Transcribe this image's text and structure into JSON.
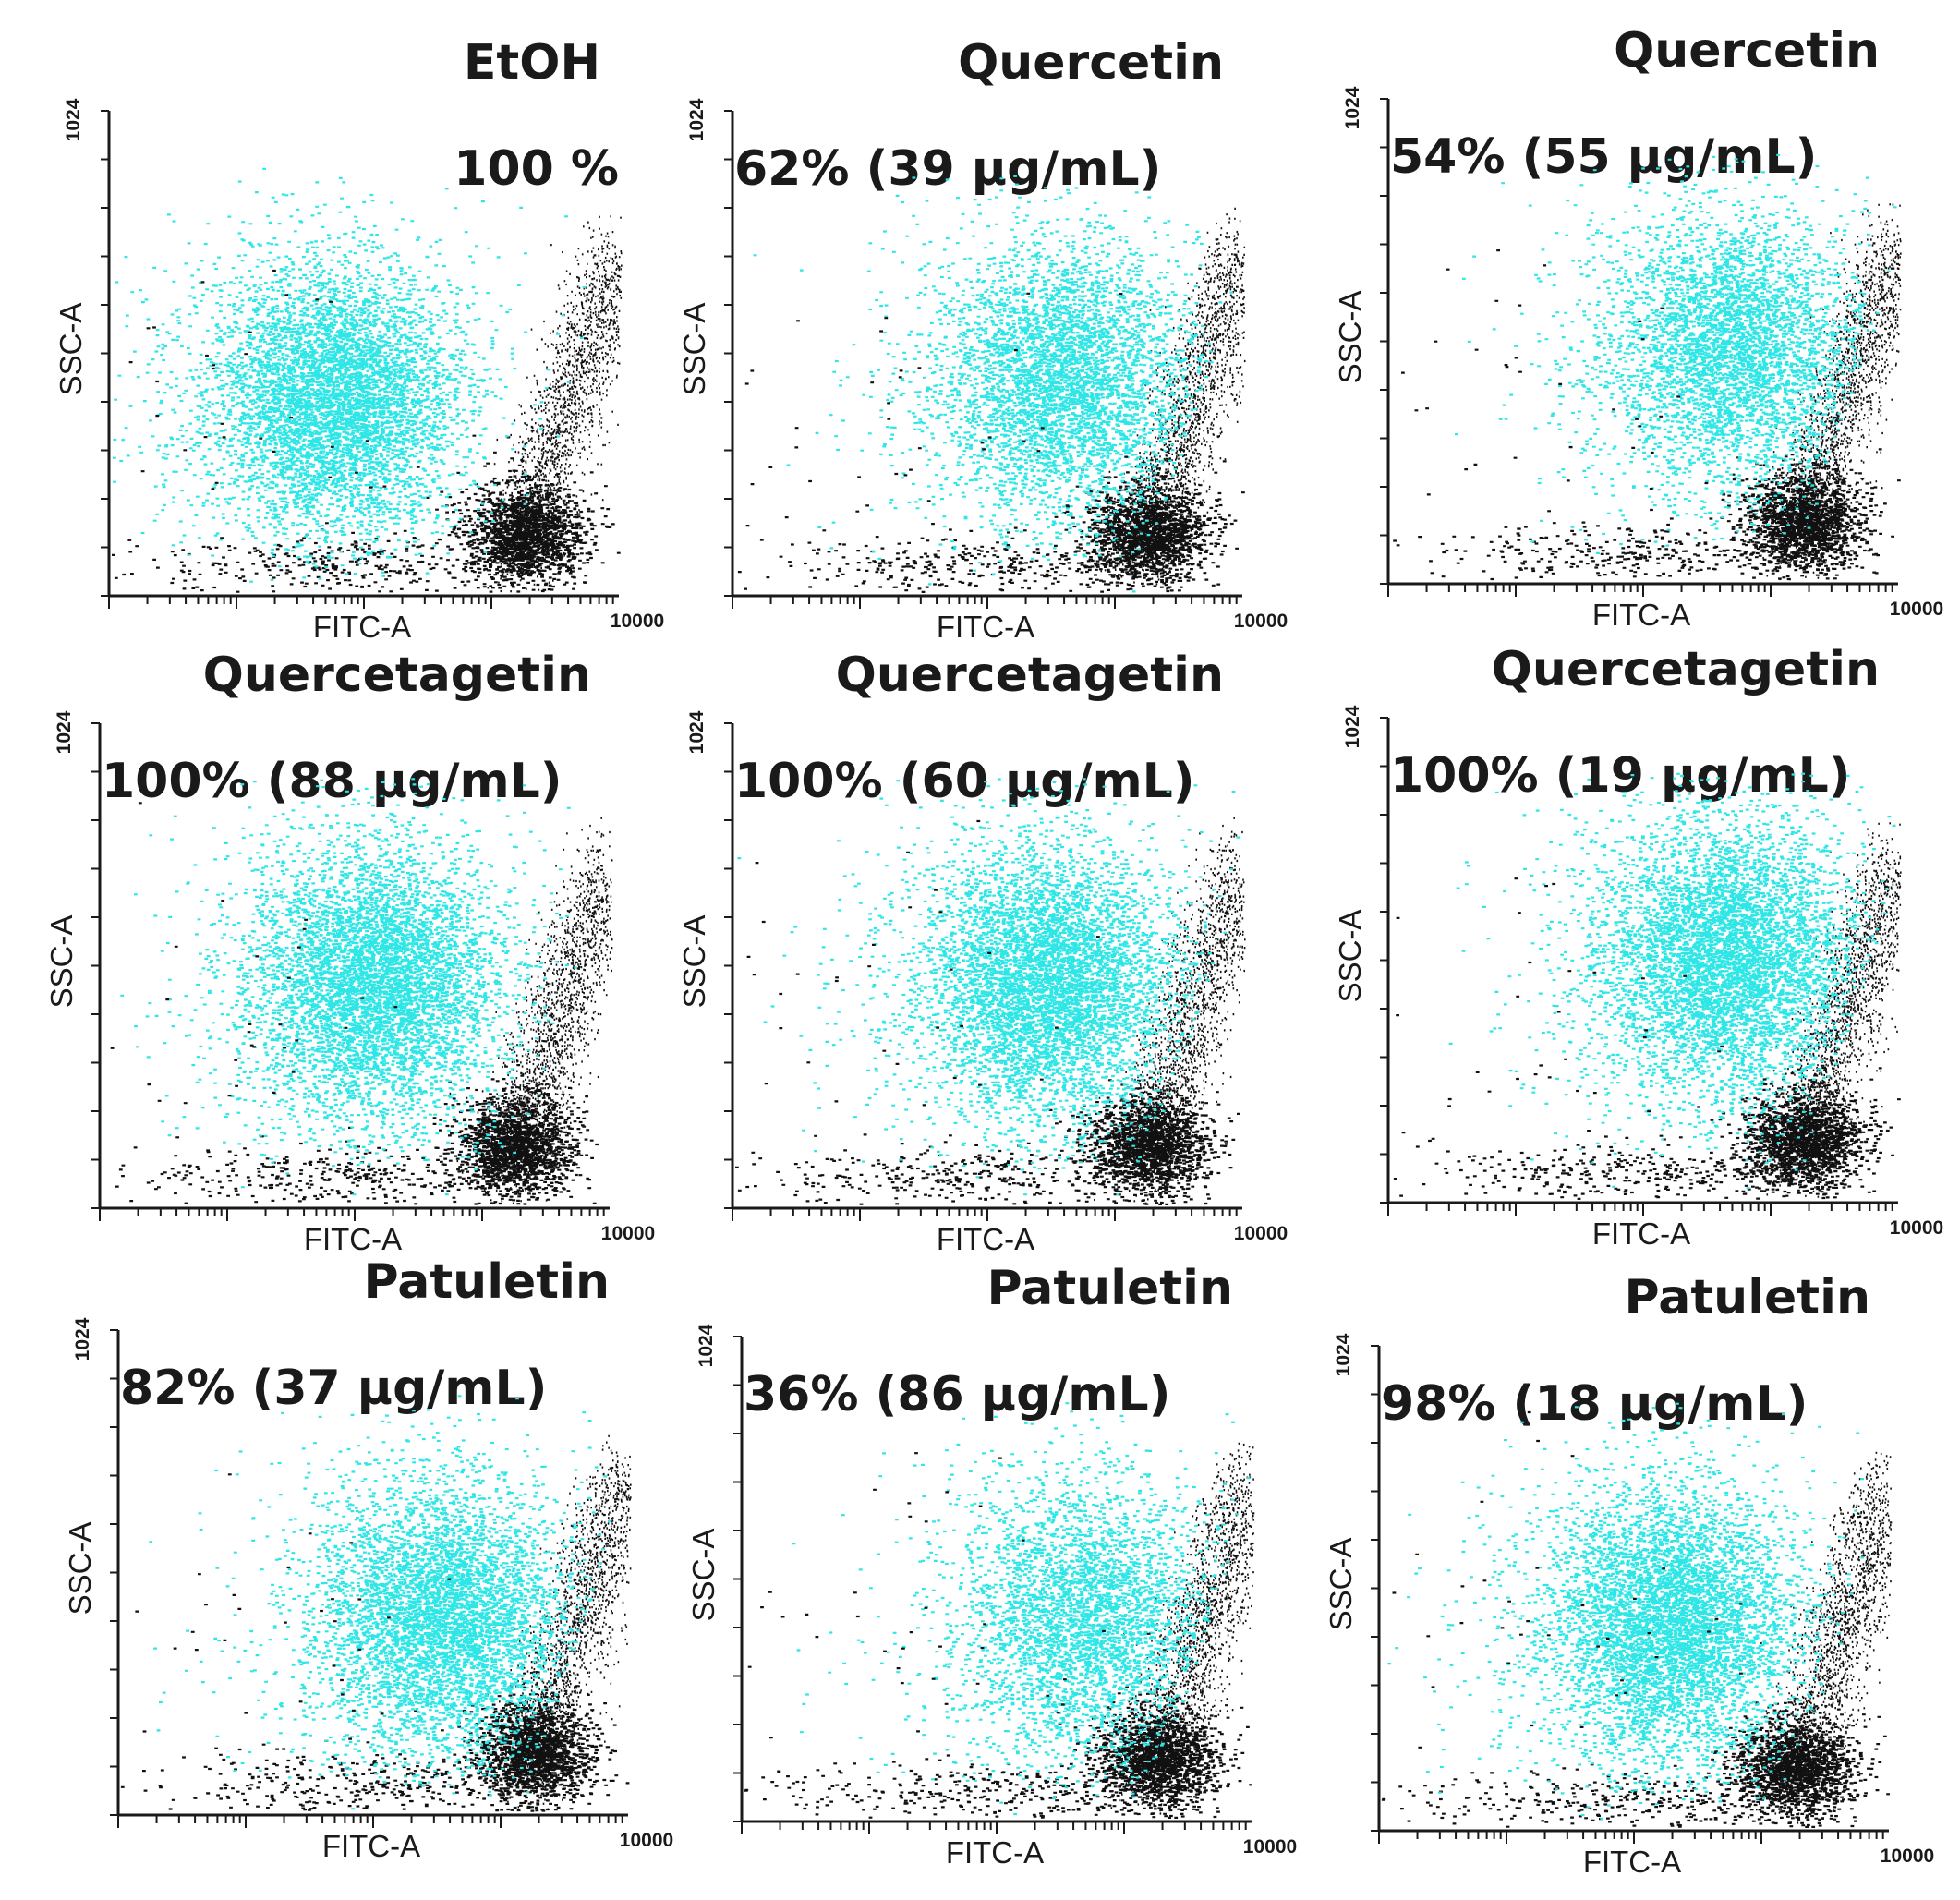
{
  "figure": {
    "axis_labels": {
      "x": "FITC-A",
      "y": "SSC-A"
    },
    "tick_labels": {
      "x_max": "10000",
      "y_max": "1024"
    },
    "colors": {
      "viable_population": "#2ee6e6",
      "other_events": "#111111",
      "axes": "#1a1a1a"
    }
  },
  "chart_data": [
    {
      "type": "scatter",
      "title": "EtOH",
      "annotation": "100 %",
      "viability_percent": 100,
      "concentration": null,
      "xlabel": "FITC-A",
      "ylabel": "SSC-A",
      "x_scale": "log",
      "xlim": [
        1,
        10000
      ],
      "ylim": [
        0,
        1024
      ],
      "cyan_center": {
        "x": 60,
        "y": 420
      }
    },
    {
      "type": "scatter",
      "title": "Quercetin",
      "annotation": "62% (39 μg/mL)",
      "viability_percent": 62,
      "concentration": "39 μg/mL",
      "xlabel": "FITC-A",
      "ylabel": "SSC-A",
      "x_scale": "log",
      "xlim": [
        1,
        10000
      ],
      "ylim": [
        0,
        1024
      ],
      "cyan_center": {
        "x": 400,
        "y": 460
      }
    },
    {
      "type": "scatter",
      "title": "Quercetin",
      "annotation": "54% (55 μg/mL)",
      "viability_percent": 54,
      "concentration": "55 μg/mL",
      "xlabel": "FITC-A",
      "ylabel": "SSC-A",
      "x_scale": "log",
      "xlim": [
        1,
        10000
      ],
      "ylim": [
        0,
        1024
      ],
      "cyan_center": {
        "x": 500,
        "y": 500
      }
    },
    {
      "type": "scatter",
      "title": "Quercetagetin",
      "annotation": "100% (88 μg/mL)",
      "viability_percent": 100,
      "concentration": "88 μg/mL",
      "xlabel": "FITC-A",
      "ylabel": "SSC-A",
      "x_scale": "log",
      "xlim": [
        1,
        10000
      ],
      "ylim": [
        0,
        1024
      ],
      "cyan_center": {
        "x": 150,
        "y": 480
      }
    },
    {
      "type": "scatter",
      "title": "Quercetagetin",
      "annotation": "100% (60 μg/mL)",
      "viability_percent": 100,
      "concentration": "60 μg/mL",
      "xlabel": "FITC-A",
      "ylabel": "SSC-A",
      "x_scale": "log",
      "xlim": [
        1,
        10000
      ],
      "ylim": [
        0,
        1024
      ],
      "cyan_center": {
        "x": 300,
        "y": 480
      }
    },
    {
      "type": "scatter",
      "title": "Quercetagetin",
      "annotation": "100% (19 μg/mL)",
      "viability_percent": 100,
      "concentration": "19 μg/mL",
      "xlabel": "FITC-A",
      "ylabel": "SSC-A",
      "x_scale": "log",
      "xlim": [
        1,
        10000
      ],
      "ylim": [
        0,
        1024
      ],
      "cyan_center": {
        "x": 450,
        "y": 520
      }
    },
    {
      "type": "scatter",
      "title": "Patuletin",
      "annotation": "82% (37 μg/mL)",
      "viability_percent": 82,
      "concentration": "37 μg/mL",
      "xlabel": "FITC-A",
      "ylabel": "SSC-A",
      "x_scale": "log",
      "xlim": [
        1,
        10000
      ],
      "ylim": [
        0,
        1024
      ],
      "cyan_center": {
        "x": 350,
        "y": 420
      }
    },
    {
      "type": "scatter",
      "title": "Patuletin",
      "annotation": "36% (86 μg/mL)",
      "viability_percent": 36,
      "concentration": "86 μg/mL",
      "xlabel": "FITC-A",
      "ylabel": "SSC-A",
      "x_scale": "log",
      "xlim": [
        1,
        10000
      ],
      "ylim": [
        0,
        1024
      ],
      "cyan_center": {
        "x": 500,
        "y": 430
      }
    },
    {
      "type": "scatter",
      "title": "Patuletin",
      "annotation": "98% (18 μg/mL)",
      "viability_percent": 98,
      "concentration": "18 μg/mL",
      "xlabel": "FITC-A",
      "ylabel": "SSC-A",
      "x_scale": "log",
      "xlim": [
        1,
        10000
      ],
      "ylim": [
        0,
        1024
      ],
      "cyan_center": {
        "x": 200,
        "y": 440
      }
    }
  ]
}
